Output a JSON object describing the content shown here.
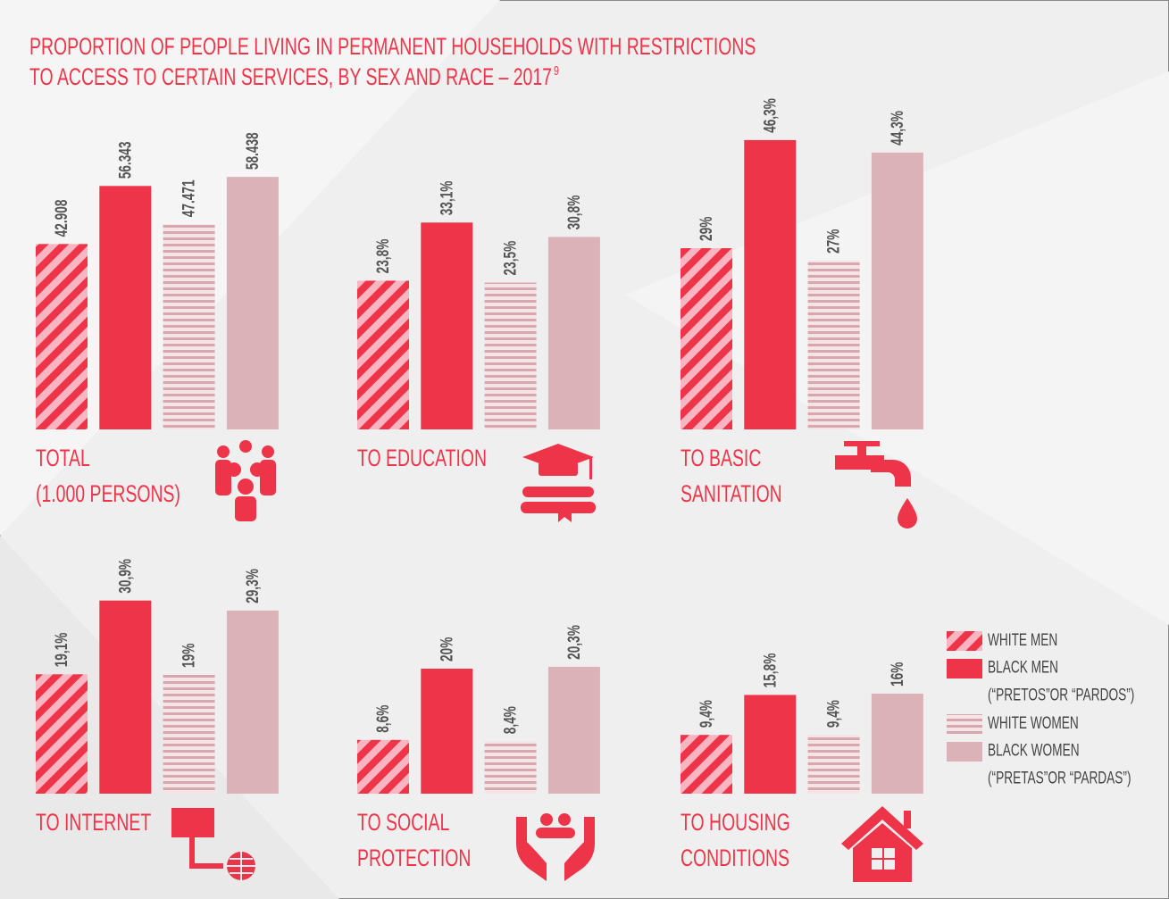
{
  "title": [
    "PROPORTION OF PEOPLE LIVING IN PERMANENT HOUSEHOLDS WITH RESTRICTIONS",
    "TO ACCESS TO CERTAIN SERVICES, BY SEX AND RACE – 2017"
  ],
  "title_note": "9",
  "legend": [
    {
      "name": "WHITE MEN",
      "pattern": "diagonal",
      "color": "#ee3448",
      "color2": "#f9b6c2"
    },
    {
      "name": "BLACK MEN (“PRETOS”OR “PARDOS”)",
      "pattern": "solid",
      "color": "#ee3448"
    },
    {
      "name": "WHITE WOMEN",
      "pattern": "horizontal",
      "color": "#d7a6ae",
      "color2": "#f4e4e6"
    },
    {
      "name": "BLACK WOMEN (“PRETAS”OR “PARDAS”)",
      "pattern": "solid",
      "color": "#dcb2b9"
    }
  ],
  "chart_data": [
    {
      "type": "bar",
      "label": [
        "TOTAL",
        "(1.000 PERSONS)"
      ],
      "values": [
        42908,
        56343,
        47471,
        58438
      ],
      "value_labels": [
        "42.908",
        "56.343",
        "47.471",
        "58.438"
      ]
    },
    {
      "type": "bar",
      "label": [
        "TO EDUCATION"
      ],
      "values": [
        23.8,
        33.1,
        23.5,
        30.8
      ],
      "value_labels": [
        "23,8%",
        "33,1%",
        "23,5%",
        "30,8%"
      ]
    },
    {
      "type": "bar",
      "label": [
        "TO BASIC",
        "SANITATION"
      ],
      "values": [
        29,
        46.3,
        27,
        44.3
      ],
      "value_labels": [
        "29%",
        "46,3%",
        "27%",
        "44,3%"
      ]
    },
    {
      "type": "bar",
      "label": [
        "TO INTERNET"
      ],
      "values": [
        19.1,
        30.9,
        19,
        29.3
      ],
      "value_labels": [
        "19,1%",
        "30,9%",
        "19%",
        "29,3%"
      ]
    },
    {
      "type": "bar",
      "label": [
        "TO SOCIAL",
        "PROTECTION"
      ],
      "values": [
        8.6,
        20,
        8.4,
        20.3
      ],
      "value_labels": [
        "8,6%",
        "20%",
        "8,4%",
        "20,3%"
      ]
    },
    {
      "type": "bar",
      "label": [
        "TO HOUSING",
        "CONDITIONS"
      ],
      "values": [
        9.4,
        15.8,
        9.4,
        16
      ],
      "value_labels": [
        "9,4%",
        "15,8%",
        "9,4%",
        "16%"
      ]
    }
  ]
}
